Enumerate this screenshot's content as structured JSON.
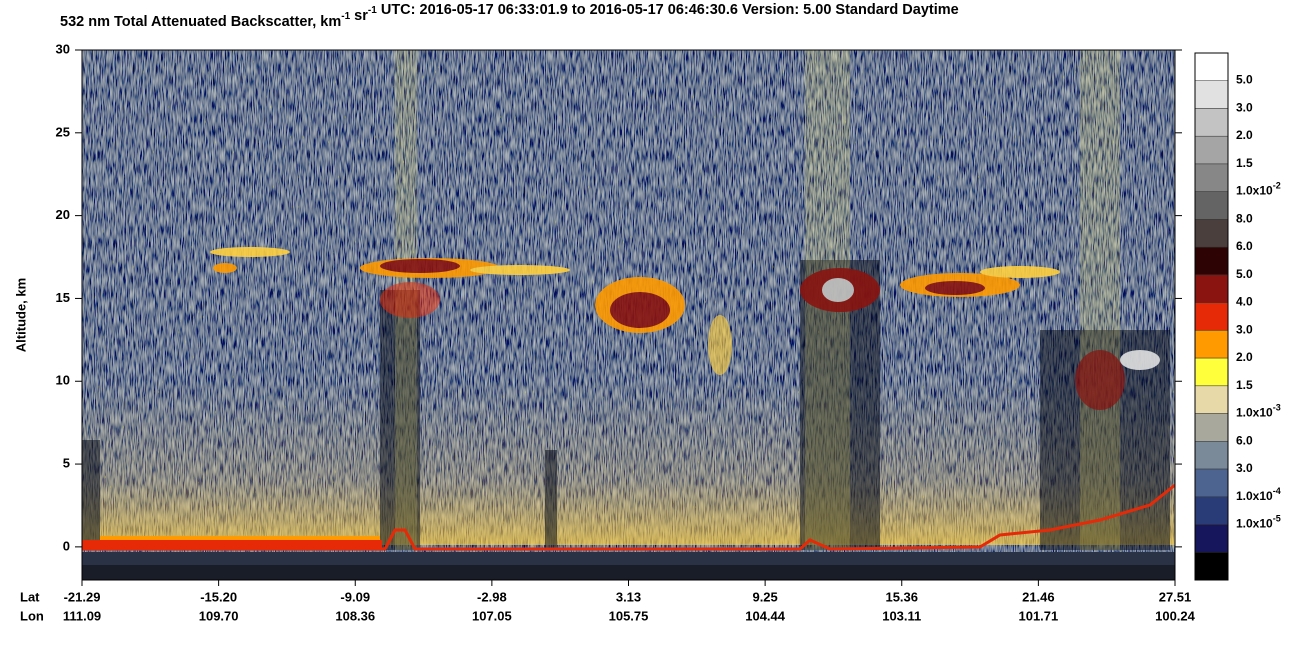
{
  "chart_data": {
    "type": "curtain",
    "title": [
      {
        "text": "532 nm Total Attenuated Backscatter, km"
      },
      {
        "sup": "-1"
      },
      {
        "text": " sr"
      },
      {
        "sup": "-1"
      },
      {
        "text": "    UTC:  2016-05-17 06:33:01.9  to  2016-05-17 06:46:30.6    Version: 5.00  Standard  Daytime"
      }
    ],
    "y_label": "Altitude, km",
    "ylim": [
      -2,
      30
    ],
    "yticks": [
      0,
      5,
      10,
      15,
      20,
      25,
      30
    ],
    "x_row_labels": [
      "Lat",
      "Lon"
    ],
    "x_ticks": [
      {
        "lat": "-21.29",
        "lon": "111.09"
      },
      {
        "lat": "-15.20",
        "lon": "109.70"
      },
      {
        "lat": "-9.09",
        "lon": "108.36"
      },
      {
        "lat": "-2.98",
        "lon": "107.05"
      },
      {
        "lat": "3.13",
        "lon": "105.75"
      },
      {
        "lat": "9.25",
        "lon": "104.44"
      },
      {
        "lat": "15.36",
        "lon": "103.11"
      },
      {
        "lat": "21.46",
        "lon": "101.71"
      },
      {
        "lat": "27.51",
        "lon": "100.24"
      }
    ],
    "colorbar": {
      "colors": [
        "#ffffff",
        "#e1e1e1",
        "#c3c3c3",
        "#a5a5a5",
        "#878787",
        "#646464",
        "#4a3f3c",
        "#2e0303",
        "#8a1410",
        "#e62a08",
        "#ff9a00",
        "#ffff3c",
        "#e8d9a8",
        "#a8a89c",
        "#7a8a98",
        "#4e6490",
        "#2a3c78",
        "#16165c",
        "#000000"
      ],
      "labels": [
        {
          "text": "5.0"
        },
        {
          "text": "3.0"
        },
        {
          "text": "2.0"
        },
        {
          "text": "1.5"
        },
        {
          "text": "1.0x10",
          "sup": "-2"
        },
        {
          "text": "8.0"
        },
        {
          "text": "6.0"
        },
        {
          "text": "5.0"
        },
        {
          "text": "4.0"
        },
        {
          "text": "3.0"
        },
        {
          "text": "2.0"
        },
        {
          "text": "1.5"
        },
        {
          "text": "1.0x10",
          "sup": "-3"
        },
        {
          "text": "6.0"
        },
        {
          "text": "3.0"
        },
        {
          "text": "1.0x10",
          "sup": "-4"
        },
        {
          "text": "1.0x10",
          "sup": "-5"
        }
      ]
    }
  }
}
